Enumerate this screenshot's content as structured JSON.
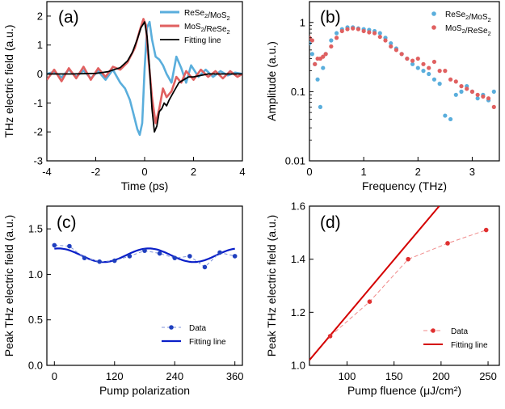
{
  "chart_data": [
    {
      "panel": "(a)",
      "type": "line",
      "xlabel": "Time (ps)",
      "ylabel": "THz electric field (a.u.)",
      "xlim": [
        -4,
        4
      ],
      "ylim": [
        -3,
        2.5
      ],
      "xticks": [
        "-4",
        "-2",
        "0",
        "2",
        "4"
      ],
      "yticks": [
        "-3",
        "-2",
        "-1",
        "0",
        "1",
        "2"
      ],
      "legend": [
        "ReSe2/MoS2",
        "MoS2/ReSe2",
        "Fitting line"
      ],
      "legend_position": "top-right",
      "series": [
        {
          "name": "ReSe2/MoS2",
          "color": "#5aaedc",
          "x": [
            -4.0,
            -3.7,
            -3.4,
            -3.1,
            -2.8,
            -2.5,
            -2.2,
            -1.9,
            -1.6,
            -1.3,
            -1.0,
            -0.8,
            -0.6,
            -0.45,
            -0.3,
            -0.2,
            -0.1,
            0.0,
            0.1,
            0.2,
            0.3,
            0.45,
            0.6,
            0.75,
            0.9,
            1.1,
            1.3,
            1.5,
            1.7,
            1.9,
            2.2,
            2.5,
            2.8,
            3.1,
            3.4,
            3.7,
            4.0
          ],
          "y": [
            0.0,
            0.08,
            -0.12,
            0.15,
            -0.1,
            0.12,
            -0.15,
            0.1,
            -0.2,
            0.15,
            -0.3,
            -0.5,
            -0.9,
            -1.4,
            -1.9,
            -2.1,
            -1.7,
            0.2,
            1.6,
            1.8,
            1.2,
            0.6,
            0.5,
            0.3,
            0.0,
            -0.3,
            0.6,
            0.2,
            -0.3,
            0.3,
            -0.1,
            0.15,
            -0.1,
            0.1,
            -0.05,
            0.05,
            0.0
          ]
        },
        {
          "name": "MoS2/ReSe2",
          "color": "#e06060",
          "x": [
            -4.0,
            -3.7,
            -3.4,
            -3.1,
            -2.8,
            -2.5,
            -2.2,
            -1.9,
            -1.6,
            -1.3,
            -1.0,
            -0.7,
            -0.4,
            -0.2,
            -0.05,
            0.05,
            0.15,
            0.3,
            0.45,
            0.6,
            0.75,
            0.9,
            1.1,
            1.3,
            1.5,
            1.7,
            2.0,
            2.3,
            2.6,
            2.9,
            3.2,
            3.5,
            3.8,
            4.0
          ],
          "y": [
            -0.2,
            0.15,
            -0.25,
            0.2,
            -0.15,
            0.25,
            -0.2,
            0.2,
            -0.1,
            0.25,
            0.15,
            0.4,
            0.9,
            1.5,
            1.9,
            1.7,
            0.6,
            -0.8,
            -1.7,
            -1.2,
            -0.5,
            -0.8,
            -0.6,
            -0.1,
            -0.3,
            0.1,
            -0.2,
            0.15,
            -0.1,
            0.1,
            -0.15,
            0.1,
            -0.1,
            0.0
          ]
        },
        {
          "name": "Fitting line",
          "color": "#000000",
          "x": [
            -4.0,
            -3.0,
            -2.0,
            -1.5,
            -1.0,
            -0.7,
            -0.5,
            -0.3,
            -0.15,
            0.0,
            0.1,
            0.2,
            0.3,
            0.4,
            0.5,
            0.6,
            0.7,
            0.8,
            0.9,
            1.0,
            1.2,
            1.4,
            1.6,
            1.8,
            2.0,
            2.3,
            2.6,
            3.0,
            3.5,
            4.0
          ],
          "y": [
            0.0,
            0.0,
            0.02,
            0.08,
            0.22,
            0.45,
            0.75,
            1.2,
            1.6,
            1.8,
            1.3,
            0.2,
            -1.2,
            -2.0,
            -1.8,
            -1.3,
            -1.2,
            -1.0,
            -1.1,
            -0.9,
            -0.6,
            -0.3,
            -0.2,
            -0.1,
            -0.1,
            -0.05,
            0.0,
            0.0,
            0.0,
            0.0
          ]
        }
      ]
    },
    {
      "panel": "(b)",
      "type": "scatter",
      "xlabel": "Frequency (THz)",
      "ylabel": "Amplitude (a.u.)",
      "yscale": "log",
      "xlim": [
        0,
        3.5
      ],
      "ylim": [
        0.01,
        2
      ],
      "xticks": [
        "0",
        "1",
        "2",
        "3"
      ],
      "yticks": [
        "0.01",
        "0.1",
        "1"
      ],
      "legend": [
        "ReSe2/MoS2",
        "MoS2/ReSe2"
      ],
      "legend_position": "top-right",
      "series": [
        {
          "name": "ReSe2/MoS2",
          "color": "#5aaedc",
          "x": [
            0.0,
            0.05,
            0.1,
            0.15,
            0.2,
            0.25,
            0.3,
            0.4,
            0.5,
            0.6,
            0.7,
            0.8,
            0.9,
            1.0,
            1.1,
            1.2,
            1.3,
            1.4,
            1.5,
            1.6,
            1.7,
            1.8,
            1.9,
            2.0,
            2.1,
            2.2,
            2.3,
            2.4,
            2.5,
            2.6,
            2.7,
            2.8,
            2.9,
            3.0,
            3.1,
            3.2,
            3.3,
            3.4
          ],
          "y": [
            0.5,
            0.35,
            0.25,
            0.15,
            0.06,
            0.22,
            0.35,
            0.55,
            0.7,
            0.8,
            0.85,
            0.85,
            0.82,
            0.8,
            0.78,
            0.75,
            0.7,
            0.6,
            0.5,
            0.42,
            0.35,
            0.3,
            0.25,
            0.22,
            0.2,
            0.18,
            0.15,
            0.13,
            0.045,
            0.04,
            0.09,
            0.1,
            0.12,
            0.1,
            0.08,
            0.09,
            0.075,
            0.1
          ]
        },
        {
          "name": "MoS2/ReSe2",
          "color": "#e06060",
          "x": [
            0.0,
            0.05,
            0.1,
            0.15,
            0.2,
            0.25,
            0.3,
            0.4,
            0.5,
            0.6,
            0.7,
            0.8,
            0.9,
            1.0,
            1.1,
            1.2,
            1.3,
            1.4,
            1.5,
            1.6,
            1.7,
            1.8,
            1.9,
            2.0,
            2.1,
            2.2,
            2.3,
            2.4,
            2.5,
            2.6,
            2.7,
            2.8,
            2.9,
            3.0,
            3.1,
            3.2,
            3.3,
            3.4
          ],
          "y": [
            0.6,
            0.55,
            0.25,
            0.3,
            0.3,
            0.32,
            0.35,
            0.45,
            0.6,
            0.75,
            0.8,
            0.82,
            0.8,
            0.75,
            0.72,
            0.7,
            0.62,
            0.55,
            0.45,
            0.4,
            0.35,
            0.3,
            0.28,
            0.3,
            0.25,
            0.22,
            0.27,
            0.2,
            0.2,
            0.15,
            0.14,
            0.12,
            0.11,
            0.1,
            0.09,
            0.085,
            0.08,
            0.06
          ]
        }
      ]
    },
    {
      "panel": "(c)",
      "type": "line",
      "xlabel": "Pump polarization",
      "ylabel": "Peak THz electric field (a.u.)",
      "xlim": [
        -15,
        375
      ],
      "ylim": [
        0.0,
        1.75
      ],
      "xticks": [
        "0",
        "120",
        "240",
        "360"
      ],
      "yticks": [
        "0.0",
        "0.5",
        "1.0",
        "1.5"
      ],
      "legend": [
        "Data",
        "Fitting line"
      ],
      "legend_position": "bottom-right",
      "series": [
        {
          "name": "Data",
          "color": "#1f3fbf",
          "x": [
            0,
            30,
            60,
            90,
            120,
            150,
            180,
            210,
            240,
            270,
            300,
            330,
            360
          ],
          "y": [
            1.32,
            1.31,
            1.18,
            1.14,
            1.15,
            1.2,
            1.26,
            1.23,
            1.18,
            1.2,
            1.08,
            1.24,
            1.2
          ]
        },
        {
          "name": "Fitting line",
          "color": "#0a1fc8",
          "function": "1.21 + 0.075*cos(2*(theta - 8 deg))",
          "x": [
            0,
            360
          ]
        }
      ]
    },
    {
      "panel": "(d)",
      "type": "line",
      "xlabel": "Pump fluence (μJ/cm²)",
      "ylabel": "Peak THz electric field (a.u.)",
      "xlim": [
        60,
        262
      ],
      "ylim": [
        1.0,
        1.6
      ],
      "xticks": [
        "100",
        "150",
        "200",
        "250"
      ],
      "yticks": [
        "1.0",
        "1.2",
        "1.4",
        "1.6"
      ],
      "legend": [
        "Data",
        "Fitting line"
      ],
      "legend_position": "bottom-right",
      "series": [
        {
          "name": "Data",
          "color": "#e03030",
          "x": [
            82,
            124,
            165,
            207,
            248
          ],
          "y": [
            1.11,
            1.24,
            1.4,
            1.46,
            1.51
          ]
        },
        {
          "name": "Fitting line",
          "color": "#d40000",
          "x": [
            60,
            198
          ],
          "y": [
            1.02,
            1.6
          ]
        }
      ]
    }
  ]
}
